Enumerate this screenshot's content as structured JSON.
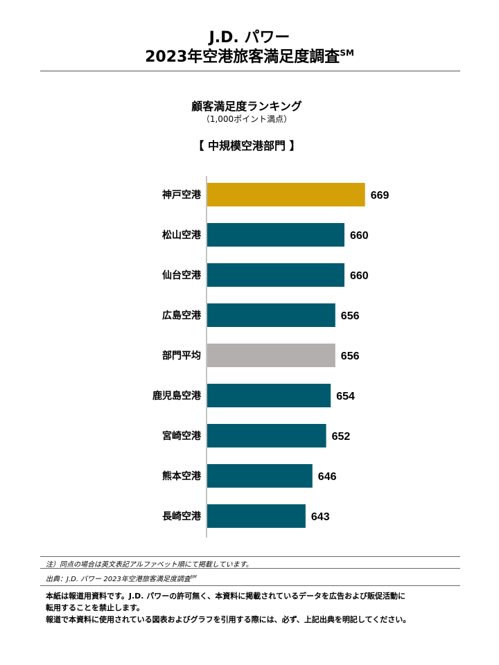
{
  "header": {
    "brand": "J.D. パワー",
    "survey_title": "2023年空港旅客満足度調査",
    "survey_mark": "SM"
  },
  "ranking": {
    "title": "顧客満足度ランキング",
    "points_note": "（1,000ポイント満点）",
    "segment": "【 中規模空港部門 】"
  },
  "chart_data": {
    "type": "bar",
    "orientation": "horizontal",
    "categories": [
      "神戸空港",
      "松山空港",
      "仙台空港",
      "広島空港",
      "部門平均",
      "鹿児島空港",
      "宮崎空港",
      "熊本空港",
      "長崎空港"
    ],
    "values": [
      669,
      660,
      660,
      656,
      656,
      654,
      652,
      646,
      643
    ],
    "bar_colors": [
      "#D4A008",
      "#005A6E",
      "#005A6E",
      "#005A6E",
      "#B3AFAF",
      "#005A6E",
      "#005A6E",
      "#005A6E",
      "#005A6E"
    ],
    "data_labels": [
      "669",
      "660",
      "660",
      "656",
      "656",
      "654",
      "652",
      "646",
      "643"
    ],
    "xlim": [
      600,
      670
    ],
    "grid": false,
    "legend": "none",
    "title": "顧客満足度ランキング",
    "xlabel": "",
    "ylabel": ""
  },
  "footer": {
    "note": "注）同点の場合は英文表記アルファベット順にて掲載しています。",
    "source": "出典：J.D. パワー 2023年空港旅客満足度調査",
    "source_mark": "SM",
    "disclaimer_line1": "本紙は報道用資料です。J.D. パワーの許可無く、本資料に掲載されているデータを広告および販促活動に",
    "disclaimer_line2": "転用することを禁止します。",
    "disclaimer_line3": "報道で本資料に使用されている図表およびグラフを引用する際には、必ず、上記出典を明記してください。"
  }
}
